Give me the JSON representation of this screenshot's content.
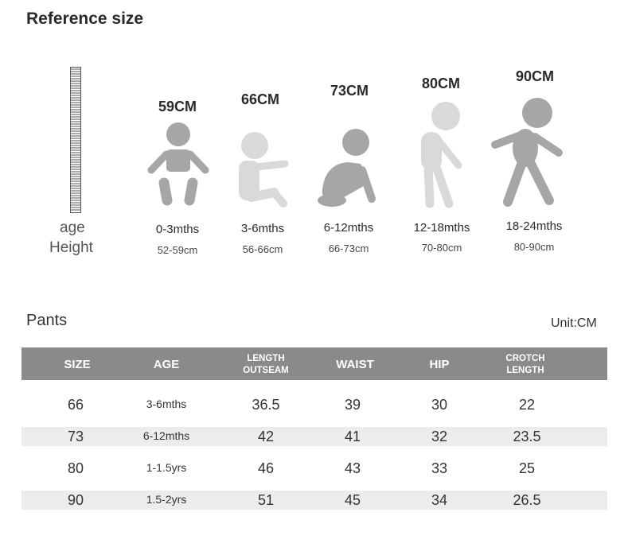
{
  "reference": {
    "title": "Reference size",
    "axis_label_age": "age",
    "axis_label_height": "Height",
    "figures": [
      {
        "height": "59CM",
        "age": "0-3mths",
        "range": "52-59cm",
        "pose": "baby-lying-icon"
      },
      {
        "height": "66CM",
        "age": "3-6mths",
        "range": "56-66cm",
        "pose": "baby-sitting-icon"
      },
      {
        "height": "73CM",
        "age": "6-12mths",
        "range": "66-73cm",
        "pose": "baby-crawling-icon"
      },
      {
        "height": "80CM",
        "age": "12-18mths",
        "range": "70-80cm",
        "pose": "toddler-standing-icon"
      },
      {
        "height": "90CM",
        "age": "18-24mths",
        "range": "80-90cm",
        "pose": "toddler-walking-icon"
      }
    ]
  },
  "pants": {
    "title": "Pants",
    "unit": "Unit:CM",
    "headers": {
      "size": "SIZE",
      "age": "AGE",
      "length_1": "LENGTH",
      "length_2": "OUTSEAM",
      "waist": "WAIST",
      "hip": "HIP",
      "crotch_1": "CROTCH",
      "crotch_2": "LENGTH"
    },
    "rows": [
      {
        "size": "66",
        "age": "3-6mths",
        "length": "36.5",
        "waist": "39",
        "hip": "30",
        "crotch": "22"
      },
      {
        "size": "73",
        "age": "6-12mths",
        "length": "42",
        "waist": "41",
        "hip": "32",
        "crotch": "23.5"
      },
      {
        "size": "80",
        "age": "1-1.5yrs",
        "length": "46",
        "waist": "43",
        "hip": "33",
        "crotch": "25"
      },
      {
        "size": "90",
        "age": "1.5-2yrs",
        "length": "51",
        "waist": "45",
        "hip": "34",
        "crotch": "26.5"
      }
    ]
  },
  "colors": {
    "header_bg": "#8a8a8a",
    "row_shade": "#ececec",
    "figure_dark": "#a6a6a6",
    "figure_light": "#d9d9d9"
  }
}
